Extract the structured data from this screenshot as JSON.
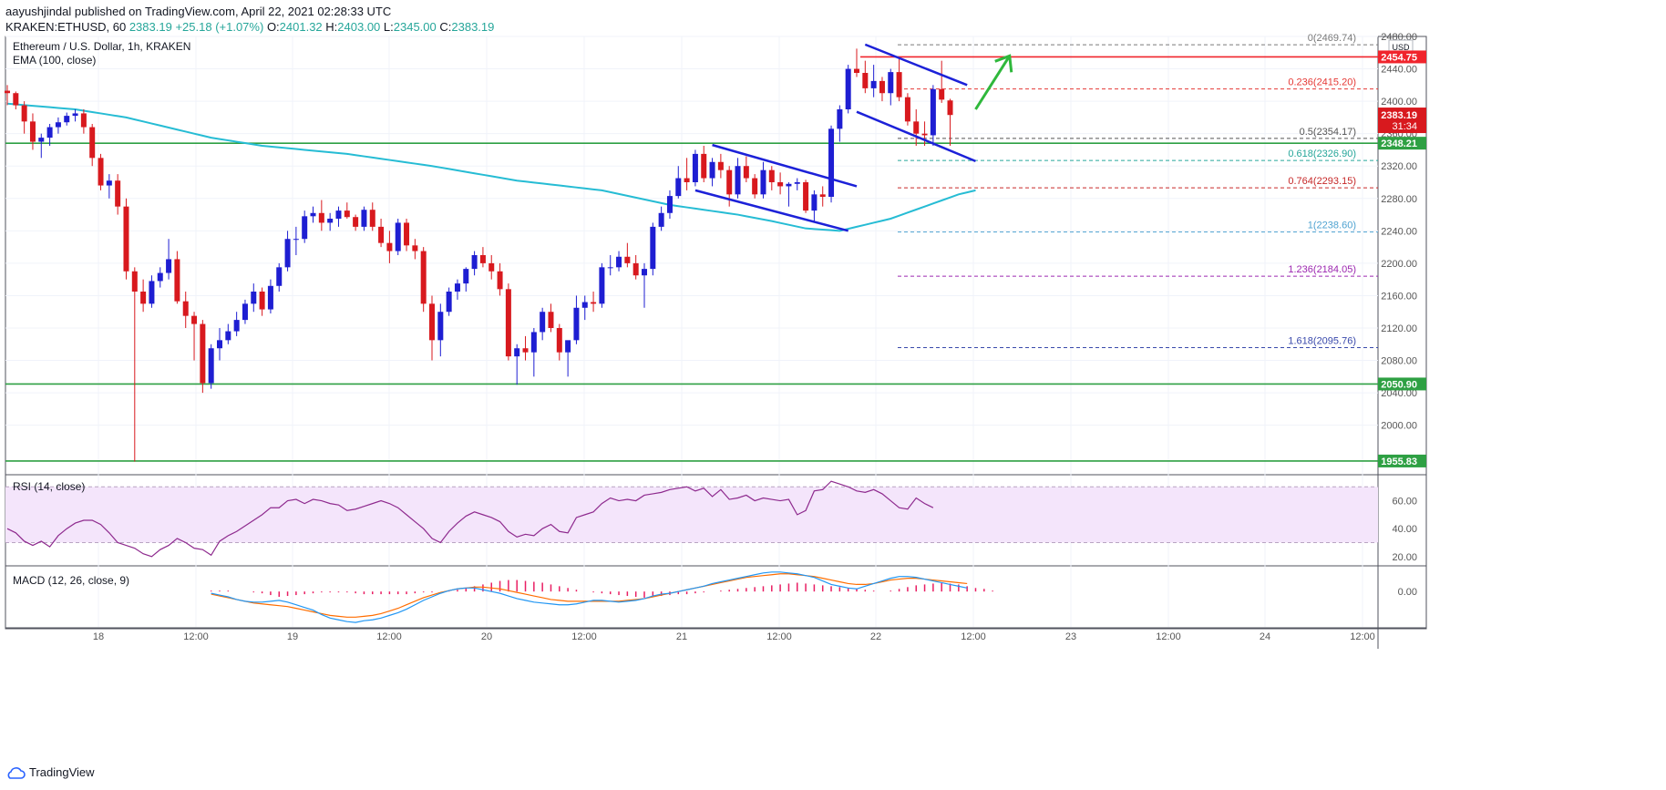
{
  "header": {
    "line1": "aayushjindal published on TradingView.com, April 22, 2021 02:28:33 UTC",
    "symbol": "KRAKEN:ETHUSD, 60",
    "last": "2383.19",
    "change": "+25.18 (+1.07%)",
    "o_label": "O:",
    "o_val": "2401.32",
    "h_label": "H:",
    "h_val": "2403.00",
    "l_label": "L:",
    "l_val": "2345.00",
    "c_label": "C:",
    "c_val": "2383.19"
  },
  "footer": {
    "brand": "TradingView"
  },
  "colors": {
    "up": "#1e1ed2",
    "down": "#d8191e",
    "ema": "#26bcd4",
    "support": "#2ea043",
    "resistance": "#f0242c",
    "trend": "#1c21d8",
    "arrow": "#2fb83c",
    "rsi": "#8e2a8e",
    "macd": "#2196f3",
    "signal": "#ff6d00",
    "hist": "#e91e63"
  },
  "chart_data": [
    {
      "type": "candlestick",
      "title": "Ethereum / U.S. Dollar, 1h, KRAKEN",
      "indicator_label": "EMA (100, close)",
      "currency": "USD",
      "ylim": [
        1940,
        2480
      ],
      "y_ticks": [
        "2000.00",
        "2040.00",
        "2080.00",
        "2120.00",
        "2160.00",
        "2200.00",
        "2240.00",
        "2280.00",
        "2320.00",
        "2360.00",
        "2400.00",
        "2440.00",
        "2480.00"
      ],
      "x_ticks": [
        "18",
        "12:00",
        "19",
        "12:00",
        "20",
        "12:00",
        "21",
        "12:00",
        "22",
        "12:00",
        "23",
        "12:00",
        "24",
        "12:00"
      ],
      "candles": [
        [
          2413,
          2420,
          2395,
          2410
        ],
        [
          2410,
          2412,
          2390,
          2395
        ],
        [
          2395,
          2400,
          2360,
          2375
        ],
        [
          2375,
          2385,
          2340,
          2350
        ],
        [
          2350,
          2360,
          2330,
          2355
        ],
        [
          2355,
          2372,
          2345,
          2368
        ],
        [
          2368,
          2380,
          2360,
          2374
        ],
        [
          2374,
          2386,
          2370,
          2382
        ],
        [
          2382,
          2390,
          2375,
          2385
        ],
        [
          2385,
          2390,
          2360,
          2368
        ],
        [
          2368,
          2372,
          2320,
          2330
        ],
        [
          2330,
          2335,
          2290,
          2296
        ],
        [
          2296,
          2310,
          2280,
          2302
        ],
        [
          2302,
          2310,
          2260,
          2270
        ],
        [
          2270,
          2280,
          2180,
          2190
        ],
        [
          2190,
          2195,
          1955,
          2165
        ],
        [
          2165,
          2180,
          2140,
          2150
        ],
        [
          2150,
          2185,
          2145,
          2178
        ],
        [
          2178,
          2195,
          2170,
          2188
        ],
        [
          2188,
          2230,
          2180,
          2205
        ],
        [
          2205,
          2215,
          2150,
          2153
        ],
        [
          2153,
          2165,
          2120,
          2135
        ],
        [
          2135,
          2140,
          2080,
          2125
        ],
        [
          2125,
          2130,
          2040,
          2052
        ],
        [
          2052,
          2100,
          2045,
          2095
        ],
        [
          2095,
          2120,
          2080,
          2105
        ],
        [
          2105,
          2125,
          2100,
          2116
        ],
        [
          2116,
          2140,
          2110,
          2130
        ],
        [
          2130,
          2155,
          2125,
          2150
        ],
        [
          2150,
          2175,
          2140,
          2165
        ],
        [
          2165,
          2170,
          2135,
          2143
        ],
        [
          2143,
          2180,
          2138,
          2172
        ],
        [
          2172,
          2200,
          2165,
          2195
        ],
        [
          2195,
          2240,
          2190,
          2230
        ],
        [
          2230,
          2245,
          2210,
          2230
        ],
        [
          2230,
          2265,
          2225,
          2258
        ],
        [
          2258,
          2270,
          2250,
          2262
        ],
        [
          2262,
          2278,
          2240,
          2250
        ],
        [
          2250,
          2262,
          2240,
          2255
        ],
        [
          2255,
          2270,
          2245,
          2265
        ],
        [
          2265,
          2275,
          2255,
          2257
        ],
        [
          2257,
          2260,
          2240,
          2245
        ],
        [
          2245,
          2270,
          2240,
          2266
        ],
        [
          2266,
          2275,
          2240,
          2245
        ],
        [
          2245,
          2255,
          2220,
          2225
        ],
        [
          2225,
          2240,
          2200,
          2215
        ],
        [
          2215,
          2255,
          2210,
          2250
        ],
        [
          2250,
          2255,
          2215,
          2222
        ],
        [
          2222,
          2230,
          2205,
          2215
        ],
        [
          2215,
          2220,
          2140,
          2150
        ],
        [
          2150,
          2160,
          2080,
          2105
        ],
        [
          2105,
          2150,
          2085,
          2140
        ],
        [
          2140,
          2170,
          2135,
          2165
        ],
        [
          2165,
          2180,
          2155,
          2175
        ],
        [
          2175,
          2195,
          2165,
          2193
        ],
        [
          2193,
          2215,
          2185,
          2210
        ],
        [
          2210,
          2220,
          2195,
          2200
        ],
        [
          2200,
          2210,
          2180,
          2190
        ],
        [
          2190,
          2200,
          2160,
          2168
        ],
        [
          2168,
          2175,
          2080,
          2085
        ],
        [
          2085,
          2100,
          2050,
          2095
        ],
        [
          2095,
          2110,
          2080,
          2090
        ],
        [
          2090,
          2120,
          2060,
          2115
        ],
        [
          2115,
          2145,
          2105,
          2140
        ],
        [
          2140,
          2150,
          2115,
          2120
        ],
        [
          2120,
          2125,
          2080,
          2090
        ],
        [
          2090,
          2100,
          2060,
          2105
        ],
        [
          2105,
          2160,
          2100,
          2145
        ],
        [
          2145,
          2160,
          2130,
          2152
        ],
        [
          2152,
          2165,
          2140,
          2150
        ],
        [
          2150,
          2200,
          2145,
          2195
        ],
        [
          2195,
          2210,
          2185,
          2195
        ],
        [
          2195,
          2215,
          2190,
          2208
        ],
        [
          2208,
          2225,
          2195,
          2200
        ],
        [
          2200,
          2210,
          2180,
          2185
        ],
        [
          2185,
          2200,
          2145,
          2193
        ],
        [
          2193,
          2250,
          2185,
          2245
        ],
        [
          2245,
          2270,
          2240,
          2262
        ],
        [
          2262,
          2290,
          2255,
          2283
        ],
        [
          2283,
          2320,
          2280,
          2305
        ],
        [
          2305,
          2330,
          2290,
          2300
        ],
        [
          2300,
          2340,
          2295,
          2335
        ],
        [
          2335,
          2345,
          2300,
          2305
        ],
        [
          2305,
          2330,
          2295,
          2325
        ],
        [
          2325,
          2335,
          2305,
          2315
        ],
        [
          2315,
          2320,
          2270,
          2285
        ],
        [
          2285,
          2330,
          2280,
          2320
        ],
        [
          2320,
          2332,
          2300,
          2305
        ],
        [
          2305,
          2310,
          2280,
          2285
        ],
        [
          2285,
          2325,
          2280,
          2315
        ],
        [
          2315,
          2320,
          2290,
          2300
        ],
        [
          2300,
          2312,
          2285,
          2295
        ],
        [
          2295,
          2300,
          2270,
          2298
        ],
        [
          2298,
          2305,
          2290,
          2300
        ],
        [
          2300,
          2303,
          2262,
          2265
        ],
        [
          2265,
          2290,
          2250,
          2285
        ],
        [
          2285,
          2295,
          2270,
          2282
        ],
        [
          2282,
          2370,
          2275,
          2366
        ],
        [
          2366,
          2395,
          2350,
          2390
        ],
        [
          2390,
          2445,
          2385,
          2440
        ],
        [
          2440,
          2465,
          2430,
          2435
        ],
        [
          2435,
          2450,
          2410,
          2416
        ],
        [
          2416,
          2445,
          2405,
          2425
        ],
        [
          2425,
          2430,
          2400,
          2410
        ],
        [
          2410,
          2440,
          2395,
          2436
        ],
        [
          2436,
          2455,
          2400,
          2405
        ],
        [
          2405,
          2410,
          2370,
          2375
        ],
        [
          2375,
          2390,
          2345,
          2360
        ],
        [
          2360,
          2375,
          2345,
          2358
        ],
        [
          2358,
          2420,
          2345,
          2415
        ],
        [
          2415,
          2450,
          2398,
          2402
        ],
        [
          2401,
          2403,
          2345,
          2383
        ]
      ],
      "ema_anchors": [
        [
          0,
          2397
        ],
        [
          8,
          2390
        ],
        [
          14,
          2380
        ],
        [
          24,
          2355
        ],
        [
          30,
          2345
        ],
        [
          40,
          2335
        ],
        [
          50,
          2320
        ],
        [
          60,
          2302
        ],
        [
          70,
          2290
        ],
        [
          78,
          2272
        ],
        [
          86,
          2260
        ],
        [
          90,
          2252
        ],
        [
          94,
          2243
        ],
        [
          98,
          2240
        ],
        [
          104,
          2255
        ],
        [
          108,
          2270
        ],
        [
          112,
          2285
        ],
        [
          114,
          2290
        ]
      ],
      "horizontal_levels": [
        {
          "price": 2348.21,
          "label": "2348.21",
          "kind": "support"
        },
        {
          "price": 2050.9,
          "label": "2050.90",
          "kind": "support"
        },
        {
          "price": 1955.83,
          "label": "1955.83",
          "kind": "support"
        },
        {
          "price": 2454.75,
          "label": "2454.75",
          "kind": "resistance"
        }
      ],
      "current_price": {
        "value": 2383.19,
        "label": "2383.19",
        "countdown": "31:34"
      },
      "fibonacci": [
        {
          "level": "0",
          "price": 2469.74,
          "label": "0(2469.74)",
          "color": "#7a7a7a"
        },
        {
          "level": "0.236",
          "price": 2415.2,
          "label": "0.236(2415.20)",
          "color": "#e53935"
        },
        {
          "level": "0.5",
          "price": 2354.17,
          "label": "0.5(2354.17)",
          "color": "#555555"
        },
        {
          "level": "0.618",
          "price": 2326.9,
          "label": "0.618(2326.90)",
          "color": "#26a69a"
        },
        {
          "level": "0.764",
          "price": 2293.15,
          "label": "0.764(2293.15)",
          "color": "#c62828"
        },
        {
          "level": "1",
          "price": 2238.6,
          "label": "1(2238.60)",
          "color": "#4fa3d1"
        },
        {
          "level": "1.236",
          "price": 2184.05,
          "label": "1.236(2184.05)",
          "color": "#9c27b0"
        },
        {
          "level": "1.618",
          "price": 2095.76,
          "label": "1.618(2095.76)",
          "color": "#3949ab"
        }
      ],
      "channels": [
        {
          "from": [
            83,
            2346
          ],
          "to": [
            100,
            2295
          ]
        },
        {
          "from": [
            81,
            2290
          ],
          "to": [
            99,
            2240
          ]
        },
        {
          "from": [
            101,
            2470
          ],
          "to": [
            113,
            2420
          ]
        },
        {
          "from": [
            100,
            2387
          ],
          "to": [
            114,
            2326
          ]
        }
      ],
      "arrow": {
        "from": [
          114,
          2390
        ],
        "to": [
          118,
          2456
        ]
      }
    },
    {
      "type": "line",
      "title": "RSI (14, close)",
      "ylim": [
        14,
        78
      ],
      "y_ticks": [
        "20.00",
        "40.00",
        "60.00"
      ],
      "bands": [
        30,
        70
      ],
      "values": [
        40,
        37,
        31,
        28,
        31,
        27,
        35,
        40,
        44,
        46,
        46,
        43,
        37,
        30,
        28,
        26,
        22,
        20,
        25,
        28,
        33,
        30,
        26,
        25,
        21,
        31,
        35,
        38,
        42,
        46,
        50,
        55,
        55,
        60,
        61,
        58,
        61,
        60,
        58,
        57,
        53,
        54,
        56,
        58,
        60,
        58,
        55,
        50,
        45,
        40,
        33,
        30,
        38,
        44,
        49,
        52,
        50,
        48,
        45,
        38,
        34,
        36,
        35,
        40,
        43,
        38,
        37,
        48,
        50,
        52,
        58,
        62,
        60,
        61,
        60,
        64,
        65,
        66,
        68,
        69,
        70,
        67,
        69,
        63,
        68,
        61,
        62,
        64,
        60,
        62,
        61,
        60,
        61,
        50,
        53,
        67,
        68,
        74,
        72,
        70,
        67,
        66,
        68,
        65,
        60,
        55,
        54,
        62,
        58,
        55
      ]
    },
    {
      "type": "macd",
      "title": "MACD (12, 26, close, 9)",
      "ylim": [
        -40,
        28
      ],
      "y_ticks": [
        "0.00"
      ],
      "macd": [
        -2,
        -4,
        -6,
        -9,
        -11,
        -12,
        -12,
        -11,
        -10,
        -12,
        -15,
        -18,
        -21,
        -26,
        -30,
        -32,
        -34,
        -35,
        -33,
        -32,
        -30,
        -27,
        -24,
        -20,
        -15,
        -10,
        -6,
        -2,
        1,
        3,
        4,
        4,
        2,
        0,
        -2,
        -5,
        -8,
        -10,
        -12,
        -13,
        -14,
        -15,
        -15,
        -14,
        -12,
        -10,
        -10,
        -11,
        -12,
        -11,
        -10,
        -8,
        -5,
        -3,
        -2,
        0,
        2,
        4,
        6,
        9,
        11,
        13,
        15,
        17,
        19,
        21,
        22,
        22,
        21,
        20,
        18,
        16,
        12,
        8,
        6,
        4,
        3,
        6,
        9,
        12,
        15,
        17,
        17,
        16,
        14,
        12,
        10,
        8,
        6,
        4
      ],
      "signal": [
        -3,
        -5,
        -7,
        -9,
        -11,
        -13,
        -14,
        -15,
        -16,
        -17,
        -19,
        -21,
        -23,
        -25,
        -27,
        -28,
        -29,
        -29,
        -28,
        -27,
        -25,
        -22,
        -19,
        -15,
        -11,
        -7,
        -4,
        -1,
        1,
        3,
        4,
        5,
        5,
        4,
        3,
        1,
        -1,
        -3,
        -5,
        -7,
        -9,
        -10,
        -11,
        -11,
        -11,
        -11,
        -11,
        -11,
        -11,
        -10,
        -9,
        -8,
        -6,
        -4,
        -2,
        0,
        2,
        4,
        6,
        8,
        10,
        12,
        14,
        16,
        17,
        18,
        19,
        20,
        20,
        19,
        18,
        17,
        15,
        13,
        11,
        9,
        8,
        8,
        9,
        11,
        13,
        14,
        15,
        15,
        14,
        13,
        12,
        11,
        10,
        9
      ],
      "hist": [
        1,
        1,
        1,
        0,
        0,
        -1,
        -2,
        -4,
        -6,
        -5,
        -4,
        -3,
        -2,
        -1,
        -1,
        -1,
        -1,
        -2,
        -3,
        -3,
        -3,
        -3,
        -3,
        -3,
        -2,
        -1,
        -1,
        0,
        1,
        2,
        4,
        6,
        8,
        10,
        12,
        13,
        13,
        12,
        11,
        10,
        8,
        6,
        4,
        2,
        0,
        -1,
        -2,
        -3,
        -4,
        -5,
        -6,
        -7,
        -6,
        -5,
        -4,
        -3,
        -3,
        -2,
        -1,
        0,
        1,
        2,
        3,
        4,
        5,
        6,
        7,
        8,
        9,
        10,
        9,
        8,
        7,
        6,
        5,
        4,
        3,
        2,
        1,
        0,
        1,
        3,
        5,
        7,
        8,
        9,
        10,
        9,
        8,
        6,
        4,
        3,
        1
      ]
    }
  ]
}
